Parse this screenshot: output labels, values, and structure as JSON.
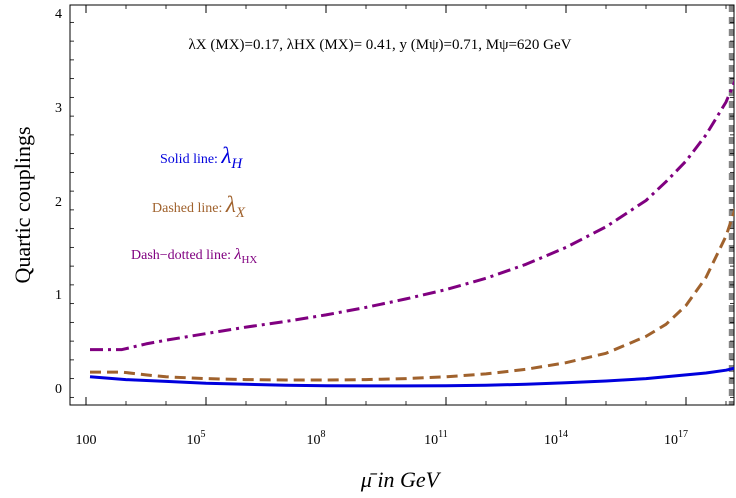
{
  "chart_data": {
    "type": "line",
    "title": "",
    "xlabel": "μ̄  in GeV",
    "ylabel": "Quartic couplings",
    "x_scale": "log10",
    "xlim_log10": [
      2,
      18.7
    ],
    "ylim": [
      -0.15,
      4.05
    ],
    "x_ticks": [
      {
        "log10": 2,
        "label": "100"
      },
      {
        "log10": 5,
        "label": "10",
        "sup": "5"
      },
      {
        "log10": 8,
        "label": "10",
        "sup": "8"
      },
      {
        "log10": 11,
        "label": "10",
        "sup": "11"
      },
      {
        "log10": 14,
        "label": "10",
        "sup": "14"
      },
      {
        "log10": 17,
        "label": "10",
        "sup": "17"
      }
    ],
    "y_ticks": [
      {
        "value": 0,
        "label": "0"
      },
      {
        "value": 1,
        "label": "1"
      },
      {
        "value": 2,
        "label": "2"
      },
      {
        "value": 3,
        "label": "3"
      },
      {
        "value": 4,
        "label": "4"
      }
    ],
    "parameters_text": "λX (MX)=0.17, λHX (MX)= 0.41, y (Mψ)=0.71, Mψ=620 GeV",
    "excluded_region": {
      "from_log10": 18.07,
      "to_log10": 18.7,
      "style": "hatched"
    },
    "series": [
      {
        "key": "lambda_H",
        "style": "solid",
        "color": "#0000dd",
        "x_log10": [
          2.1,
          3,
          4,
          5,
          6,
          7,
          8,
          9,
          10,
          11,
          12,
          13,
          14,
          15,
          16,
          17,
          17.5,
          18,
          18.3,
          18.6
        ],
        "values": [
          0.12,
          0.09,
          0.07,
          0.05,
          0.04,
          0.03,
          0.025,
          0.022,
          0.022,
          0.025,
          0.03,
          0.04,
          0.055,
          0.075,
          0.1,
          0.14,
          0.16,
          0.19,
          0.22,
          0.26
        ]
      },
      {
        "key": "lambda_X",
        "style": "dashed",
        "color": "#a0622d",
        "x_log10": [
          2.1,
          2.5,
          2.9,
          3.5,
          4,
          5,
          6,
          7,
          8,
          9,
          10,
          11,
          12,
          13,
          14,
          15,
          16,
          16.5,
          17,
          17.5,
          18,
          18.3,
          18.6
        ],
        "values": [
          0.17,
          0.17,
          0.17,
          0.14,
          0.12,
          0.1,
          0.09,
          0.085,
          0.085,
          0.09,
          0.1,
          0.12,
          0.15,
          0.2,
          0.27,
          0.37,
          0.55,
          0.68,
          0.88,
          1.18,
          1.62,
          2.0,
          2.4
        ]
      },
      {
        "key": "lambda_HX",
        "style": "dash-dot",
        "color": "#800080",
        "x_log10": [
          2.1,
          2.5,
          2.9,
          3.5,
          4,
          5,
          6,
          7,
          8,
          9,
          10,
          11,
          12,
          13,
          14,
          15,
          16,
          16.5,
          17,
          17.5,
          18,
          18.3,
          18.6
        ],
        "values": [
          0.41,
          0.41,
          0.41,
          0.47,
          0.51,
          0.58,
          0.65,
          0.71,
          0.78,
          0.86,
          0.95,
          1.05,
          1.17,
          1.32,
          1.5,
          1.72,
          2.0,
          2.2,
          2.42,
          2.7,
          3.05,
          3.35,
          3.7
        ]
      }
    ],
    "legend_notes": [
      {
        "key": "lambda_H",
        "text": "Solid line: ",
        "symbol": "λ",
        "sub": "H",
        "color": "#0000dd"
      },
      {
        "key": "lambda_X",
        "text": "Dashed line: ",
        "symbol": "λ",
        "sub": "X",
        "color": "#a0622d"
      },
      {
        "key": "lambda_HX",
        "text": "Dash−dotted line: ",
        "symbol": "λ",
        "sub": "HX",
        "color": "#800080"
      }
    ]
  }
}
